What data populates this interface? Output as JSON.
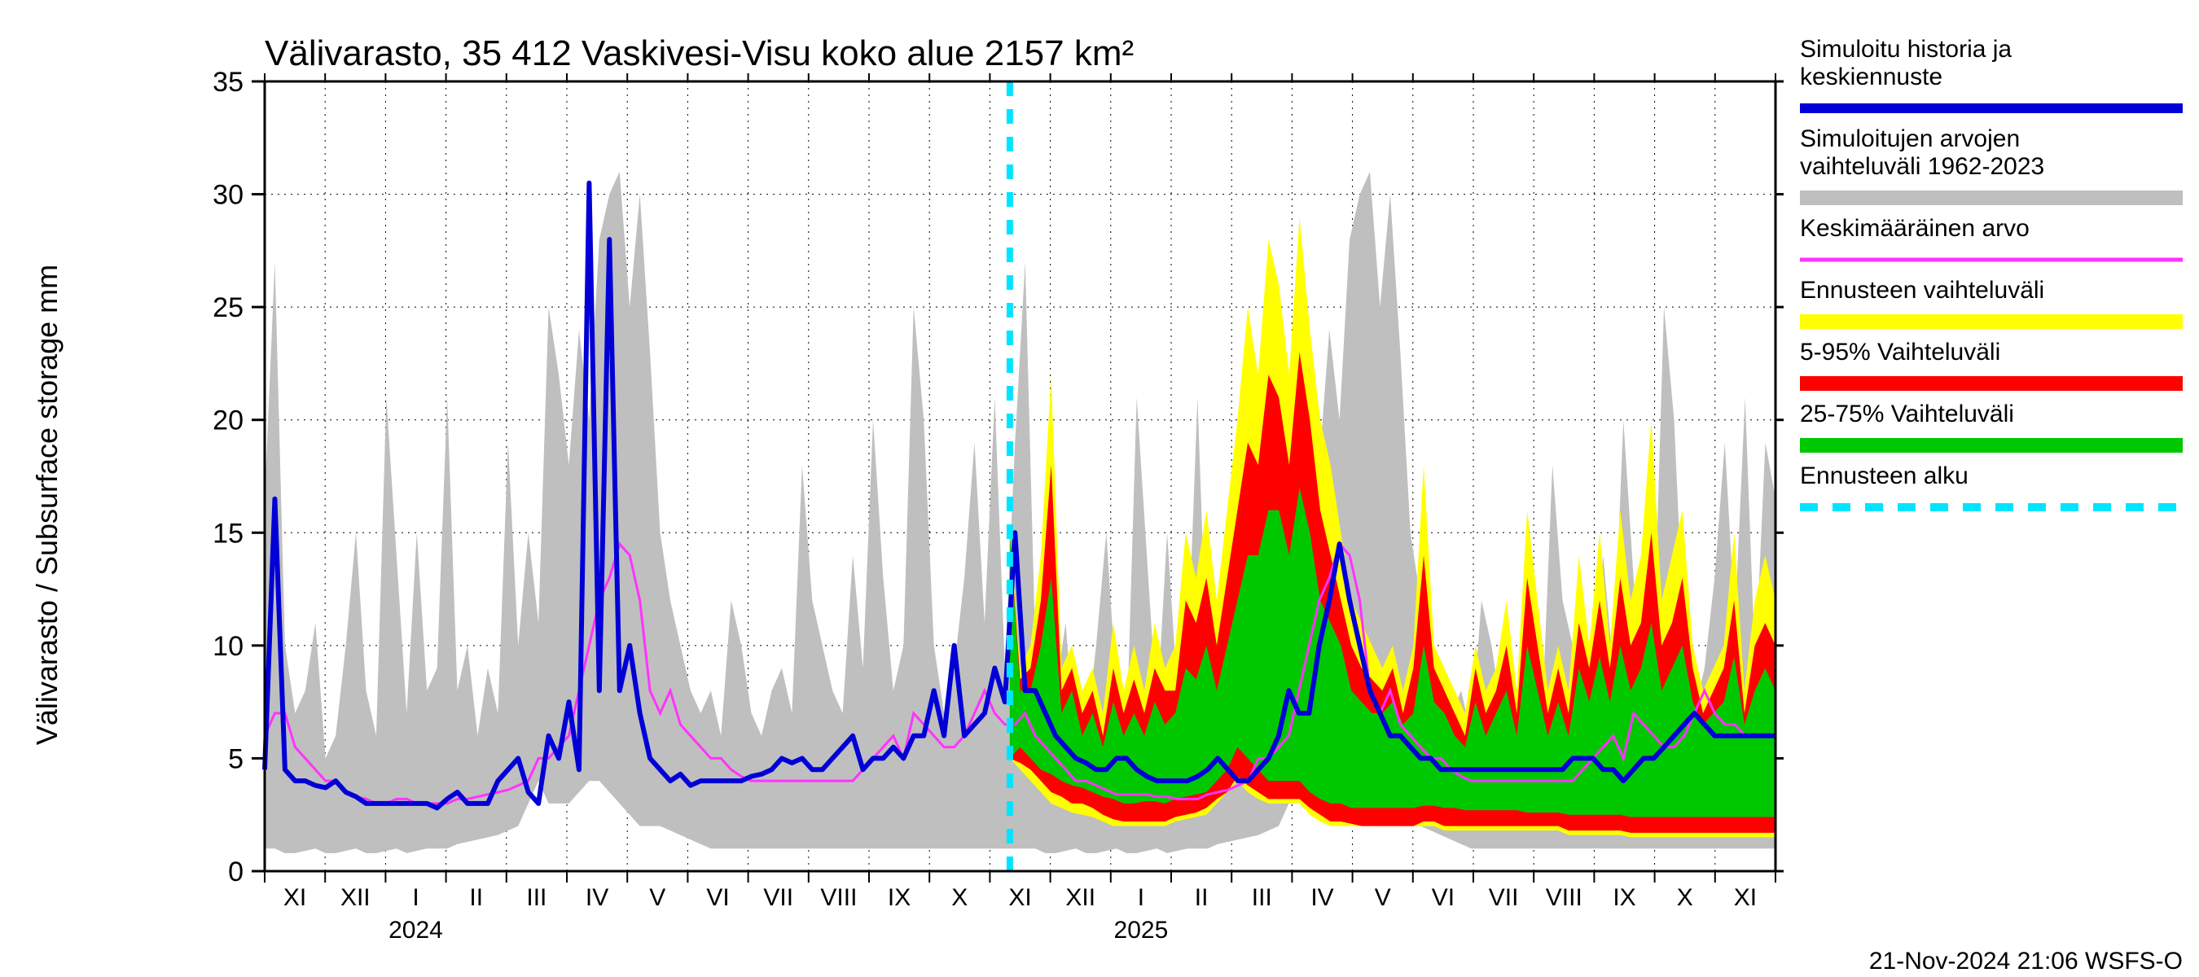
{
  "chart": {
    "type": "line-area-forecast",
    "title": "Välivarasto, 35 412 Vaskivesi-Visu koko alue 2157 km²",
    "ylabel": "Välivarasto / Subsurface storage  mm",
    "footer": "21-Nov-2024 21:06 WSFS-O",
    "background_color": "#ffffff",
    "plot_border_color": "#000000",
    "grid_color": "#000000",
    "grid_dash": "2,6",
    "ylim": [
      0,
      35
    ],
    "ytick_step": 5,
    "ytick_labels": [
      "0",
      "5",
      "10",
      "15",
      "20",
      "25",
      "30",
      "35"
    ],
    "title_fontsize": 44,
    "label_fontsize": 36,
    "tick_fontsize": 34,
    "months": [
      "XI",
      "XII",
      "I",
      "II",
      "III",
      "IV",
      "V",
      "VI",
      "VII",
      "VIII",
      "IX",
      "X",
      "XI",
      "XII",
      "I",
      "II",
      "III",
      "IV",
      "V",
      "VI",
      "VII",
      "VIII",
      "IX",
      "X",
      "XI"
    ],
    "year_labels": [
      {
        "label": "2024",
        "month_index": 2
      },
      {
        "label": "2025",
        "month_index": 14
      }
    ],
    "forecast_start_month_index": 12.33,
    "colors": {
      "hist_range": "#bfbfbf",
      "blue": "#0000d6",
      "magenta": "#ff33ff",
      "yellow": "#ffff00",
      "red": "#ff0000",
      "green": "#00c800",
      "cyan": "#00e5ff"
    },
    "line_widths": {
      "blue": 6,
      "magenta": 3,
      "cyan": 8
    },
    "legend": [
      {
        "label_lines": [
          "Simuloitu historia ja",
          "keskiennuste"
        ],
        "swatch_type": "line",
        "color": "#0000d6",
        "thickness": 12
      },
      {
        "label_lines": [
          "Simuloitujen arvojen",
          "vaihteluväli 1962-2023"
        ],
        "swatch_type": "block",
        "color": "#bfbfbf"
      },
      {
        "label_lines": [
          "Keskimääräinen arvo"
        ],
        "swatch_type": "line",
        "color": "#ff33ff",
        "thickness": 5
      },
      {
        "label_lines": [
          "Ennusteen vaihteluväli"
        ],
        "swatch_type": "block",
        "color": "#ffff00"
      },
      {
        "label_lines": [
          "5-95% Vaihteluväli"
        ],
        "swatch_type": "block",
        "color": "#ff0000"
      },
      {
        "label_lines": [
          "25-75% Vaihteluväli"
        ],
        "swatch_type": "block",
        "color": "#00c800"
      },
      {
        "label_lines": [
          "Ennusteen alku"
        ],
        "swatch_type": "dash",
        "color": "#00e5ff",
        "thickness": 10
      }
    ],
    "series": {
      "hist_range_upper": [
        16.5,
        27,
        10,
        7,
        8,
        11,
        5,
        6,
        10,
        15,
        8,
        6,
        21,
        14,
        7,
        15,
        8,
        9,
        21,
        8,
        10,
        6,
        9,
        7,
        19,
        10,
        15,
        11,
        25,
        22,
        18,
        24,
        20,
        28,
        30,
        31,
        25,
        30,
        23,
        15,
        12,
        10,
        8,
        7,
        8,
        6,
        12,
        10,
        7,
        6,
        8,
        9,
        7,
        18,
        12,
        10,
        8,
        7,
        14,
        9,
        20,
        13,
        8,
        10,
        25,
        20,
        10,
        7,
        9,
        13,
        19,
        11,
        21,
        9,
        19,
        27,
        10,
        7,
        8,
        11,
        5,
        6,
        10,
        15,
        8,
        6,
        21,
        14,
        7,
        15,
        8,
        9,
        21,
        8,
        10,
        6,
        9,
        7,
        19,
        10,
        15,
        11,
        25,
        22,
        18,
        24,
        20,
        28,
        30,
        31,
        25,
        30,
        23,
        15,
        12,
        10,
        8,
        7,
        8,
        6,
        12,
        10,
        7,
        6,
        8,
        9,
        7,
        18,
        12,
        10,
        8,
        7,
        14,
        9,
        20,
        13,
        8,
        10,
        25,
        20,
        10,
        7,
        9,
        13,
        19,
        11,
        21,
        9,
        19,
        16.5
      ],
      "hist_range_lower": [
        1,
        1,
        0.8,
        0.8,
        0.9,
        1,
        0.8,
        0.8,
        0.9,
        1,
        0.8,
        0.8,
        0.9,
        1,
        0.8,
        0.9,
        1,
        1,
        1,
        1.2,
        1.3,
        1.4,
        1.5,
        1.6,
        1.8,
        2,
        3,
        4,
        3,
        3,
        3,
        3.5,
        4,
        4,
        3.5,
        3,
        2.5,
        2,
        2,
        2,
        1.8,
        1.6,
        1.4,
        1.2,
        1,
        1,
        1,
        1,
        1,
        1,
        1,
        1,
        1,
        1,
        1,
        1,
        1,
        1,
        1,
        1,
        1,
        1,
        1,
        1,
        1,
        1,
        1,
        1,
        1,
        1,
        1,
        1,
        1,
        1,
        1,
        1,
        1,
        0.8,
        0.8,
        0.9,
        1,
        0.8,
        0.8,
        0.9,
        1,
        0.8,
        0.8,
        0.9,
        1,
        0.8,
        0.9,
        1,
        1,
        1,
        1.2,
        1.3,
        1.4,
        1.5,
        1.6,
        1.8,
        2,
        3,
        4,
        3,
        3,
        3,
        3.5,
        4,
        4,
        3.5,
        3,
        2.5,
        2,
        2,
        2,
        1.8,
        1.6,
        1.4,
        1.2,
        1,
        1,
        1,
        1,
        1,
        1,
        1,
        1,
        1,
        1,
        1,
        1,
        1,
        1,
        1,
        1,
        1,
        1,
        1,
        1,
        1,
        1,
        1,
        1,
        1,
        1,
        1,
        1,
        1,
        1,
        1
      ],
      "blue_line": [
        4.5,
        16.5,
        4.5,
        4,
        4,
        3.8,
        3.7,
        4,
        3.5,
        3.3,
        3,
        3,
        3,
        3,
        3,
        3,
        3,
        2.8,
        3.2,
        3.5,
        3,
        3,
        3,
        4,
        4.5,
        5,
        3.5,
        3,
        6,
        5,
        7.5,
        4.5,
        30.5,
        8,
        28,
        8,
        10,
        7,
        5,
        4.5,
        4,
        4.3,
        3.8,
        4,
        4,
        4,
        4,
        4,
        4.2,
        4.3,
        4.5,
        5,
        4.8,
        5,
        4.5,
        4.5,
        5,
        5.5,
        6,
        4.5,
        5,
        5,
        5.5,
        5,
        6,
        6,
        8,
        6,
        10,
        6,
        6.5,
        7,
        9,
        7.5,
        15,
        8,
        8,
        7,
        6,
        5.5,
        5,
        4.8,
        4.5,
        4.5,
        5,
        5,
        4.5,
        4.2,
        4,
        4,
        4,
        4,
        4.2,
        4.5,
        5,
        4.5,
        4,
        4,
        4.5,
        5,
        6,
        8,
        7,
        7,
        10,
        12,
        14.5,
        12,
        10,
        8,
        7,
        6,
        6,
        5.5,
        5,
        5,
        4.5,
        4.5,
        4.5,
        4.5,
        4.5,
        4.5,
        4.5,
        4.5,
        4.5,
        4.5,
        4.5,
        4.5,
        4.5,
        5,
        5,
        5,
        4.5,
        4.5,
        4,
        4.5,
        5,
        5,
        5.5,
        6,
        6.5,
        7,
        6.5,
        6,
        6,
        6,
        6,
        6,
        6,
        6
      ],
      "magenta_line": [
        6,
        7,
        7,
        5.5,
        5,
        4.5,
        4,
        4,
        3.5,
        3.3,
        3.2,
        3,
        3,
        3.2,
        3.2,
        3,
        3,
        3,
        3,
        3.2,
        3.2,
        3.3,
        3.4,
        3.5,
        3.6,
        3.8,
        4,
        5,
        5,
        5.5,
        6,
        8,
        10,
        12,
        13,
        14.5,
        14,
        12,
        8,
        7,
        8,
        6.5,
        6,
        5.5,
        5,
        5,
        4.5,
        4.2,
        4,
        4,
        4,
        4,
        4,
        4,
        4,
        4,
        4,
        4,
        4,
        4.5,
        5,
        5.5,
        6,
        5,
        7,
        6.5,
        6,
        5.5,
        5.5,
        6,
        7,
        8,
        7,
        6.5,
        6.5,
        7,
        6,
        5.5,
        5,
        4.5,
        4,
        4,
        3.8,
        3.6,
        3.4,
        3.4,
        3.4,
        3.4,
        3.3,
        3.3,
        3.2,
        3.2,
        3.2,
        3.4,
        3.5,
        3.6,
        3.8,
        4,
        5,
        5,
        5.5,
        6,
        8,
        10,
        12,
        13,
        14.5,
        14,
        12,
        8,
        7,
        8,
        6.5,
        6,
        5.5,
        5,
        5,
        4.5,
        4.2,
        4,
        4,
        4,
        4,
        4,
        4,
        4,
        4,
        4,
        4,
        4,
        4.5,
        5,
        5.5,
        6,
        5,
        7,
        6.5,
        6,
        5.5,
        5.5,
        6,
        7,
        8,
        7,
        6.5,
        6.5,
        6,
        6,
        6,
        6
      ],
      "yellow_upper": [
        15,
        9,
        10,
        14,
        22,
        9,
        10,
        8,
        9,
        7,
        11,
        8,
        10,
        8,
        11,
        9,
        10,
        15,
        13,
        16,
        12,
        16,
        20,
        25,
        22,
        28,
        26,
        22,
        29,
        24,
        20,
        18,
        15,
        12,
        11,
        10,
        9,
        10,
        8,
        10,
        18,
        10,
        9,
        8,
        7,
        10,
        8,
        9,
        12,
        8,
        16,
        12,
        8,
        10,
        8,
        14,
        10,
        15,
        10,
        16,
        12,
        14,
        20,
        12,
        14,
        16,
        10,
        8,
        9,
        10,
        15,
        8,
        12,
        14,
        12
      ],
      "yellow_lower": [
        5,
        4.5,
        4,
        3.5,
        3,
        2.8,
        2.6,
        2.5,
        2.4,
        2.2,
        2,
        2,
        2,
        2,
        2,
        2,
        2.2,
        2.3,
        2.4,
        2.5,
        3,
        3.5,
        4,
        3.5,
        3.2,
        3,
        3,
        3,
        3,
        2.5,
        2.2,
        2,
        2,
        2,
        2,
        2,
        2,
        2,
        2,
        2,
        2,
        2,
        1.8,
        1.8,
        1.8,
        1.8,
        1.8,
        1.8,
        1.8,
        1.8,
        1.8,
        1.8,
        1.8,
        1.8,
        1.6,
        1.6,
        1.6,
        1.6,
        1.6,
        1.6,
        1.5,
        1.5,
        1.5,
        1.5,
        1.5,
        1.5,
        1.5,
        1.5,
        1.5,
        1.5,
        1.5,
        1.5,
        1.5,
        1.5,
        1.5
      ],
      "red_upper": [
        15,
        8.5,
        9,
        12,
        18,
        8,
        9,
        7,
        8,
        6,
        9,
        7,
        8.5,
        7,
        9,
        8,
        8,
        12,
        11,
        13,
        10,
        13,
        16,
        19,
        18,
        22,
        21,
        18,
        23,
        20,
        16,
        14,
        12,
        10,
        9,
        8.5,
        8,
        9,
        7,
        9,
        14,
        9,
        8,
        7,
        6,
        9,
        7,
        8,
        10,
        7,
        13,
        10,
        7,
        9,
        7,
        11,
        9,
        12,
        9,
        13,
        10,
        11,
        15,
        10,
        11,
        13,
        9,
        7,
        8,
        9,
        12,
        7,
        10,
        11,
        10
      ],
      "red_lower": [
        5,
        4.8,
        4.5,
        4,
        3.5,
        3.3,
        3,
        3,
        2.8,
        2.5,
        2.3,
        2.2,
        2.2,
        2.2,
        2.2,
        2.2,
        2.4,
        2.5,
        2.6,
        2.8,
        3.2,
        3.5,
        4.2,
        3.8,
        3.5,
        3.2,
        3.2,
        3.2,
        3.2,
        2.8,
        2.5,
        2.2,
        2.2,
        2.1,
        2,
        2,
        2,
        2,
        2,
        2,
        2.2,
        2.2,
        2,
        2,
        2,
        2,
        2,
        2,
        2,
        2,
        2,
        2,
        2,
        2,
        1.8,
        1.8,
        1.8,
        1.8,
        1.8,
        1.8,
        1.7,
        1.7,
        1.7,
        1.7,
        1.7,
        1.7,
        1.7,
        1.7,
        1.7,
        1.7,
        1.7,
        1.7,
        1.7,
        1.7,
        1.7
      ],
      "green_upper": [
        15,
        8,
        8,
        10,
        13,
        7,
        8,
        6,
        7,
        5.5,
        7.5,
        6,
        7,
        6,
        7.5,
        6.5,
        7,
        9,
        8.5,
        10,
        8,
        10,
        12,
        14,
        14,
        16,
        16,
        14,
        17,
        15,
        12,
        11,
        10,
        8,
        7.5,
        7,
        7,
        7.5,
        6.5,
        7,
        10,
        7.5,
        7,
        6,
        5.5,
        7.5,
        6,
        7,
        8,
        6,
        10,
        8,
        6,
        7.5,
        6,
        9,
        7.5,
        9.5,
        7.5,
        10,
        8,
        9,
        11,
        8,
        9,
        10,
        7.5,
        6.5,
        7,
        7.5,
        9.5,
        6.5,
        8,
        9,
        8
      ],
      "green_lower": [
        5,
        5.5,
        5,
        4.5,
        4.3,
        4,
        3.8,
        3.7,
        3.5,
        3.3,
        3.2,
        3,
        3,
        3.1,
        3.1,
        3,
        3.2,
        3.3,
        3.4,
        3.5,
        4,
        4.5,
        5.5,
        5,
        4.5,
        4,
        4,
        4,
        4,
        3.5,
        3.2,
        3,
        3,
        2.8,
        2.8,
        2.8,
        2.8,
        2.8,
        2.8,
        2.8,
        2.9,
        2.9,
        2.8,
        2.8,
        2.7,
        2.7,
        2.7,
        2.7,
        2.7,
        2.7,
        2.6,
        2.6,
        2.6,
        2.6,
        2.5,
        2.5,
        2.5,
        2.5,
        2.5,
        2.5,
        2.4,
        2.4,
        2.4,
        2.4,
        2.4,
        2.4,
        2.4,
        2.4,
        2.4,
        2.4,
        2.4,
        2.4,
        2.4,
        2.4,
        2.4
      ]
    }
  }
}
